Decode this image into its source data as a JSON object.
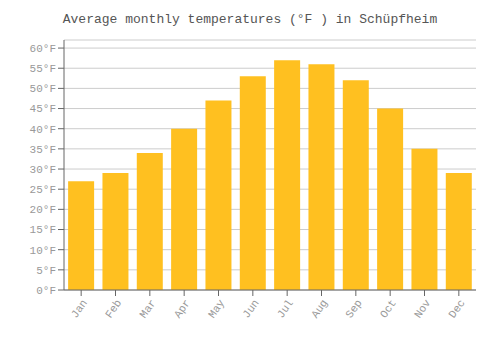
{
  "chart_data": {
    "type": "bar",
    "title": "Average monthly temperatures (°F ) in Schüpfheim",
    "categories": [
      "Jan",
      "Feb",
      "Mar",
      "Apr",
      "May",
      "Jun",
      "Jul",
      "Aug",
      "Sep",
      "Oct",
      "Nov",
      "Dec"
    ],
    "values": [
      27,
      29,
      34,
      40,
      47,
      53,
      57,
      56,
      52,
      45,
      35,
      29
    ],
    "color": "#FFC020",
    "ylim": [
      0,
      62
    ],
    "yticks": [
      {
        "value": 0,
        "label": "0°F"
      },
      {
        "value": 5,
        "label": "5°F"
      },
      {
        "value": 10,
        "label": "10°F"
      },
      {
        "value": 15,
        "label": "15°F"
      },
      {
        "value": 20,
        "label": "20°F"
      },
      {
        "value": 25,
        "label": "25°F"
      },
      {
        "value": 30,
        "label": "30°F"
      },
      {
        "value": 35,
        "label": "35°F"
      },
      {
        "value": 40,
        "label": "40°F"
      },
      {
        "value": 45,
        "label": "45°F"
      },
      {
        "value": 50,
        "label": "50°F"
      },
      {
        "value": 55,
        "label": "55°F"
      },
      {
        "value": 60,
        "label": "60°F"
      }
    ],
    "grid": true
  }
}
